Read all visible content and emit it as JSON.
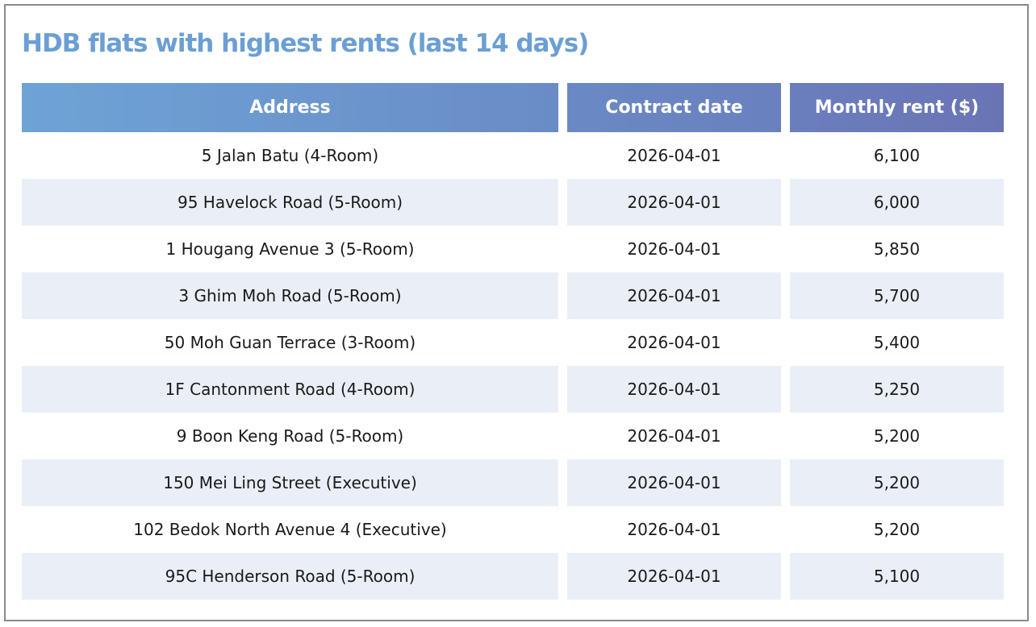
{
  "title": "HDB flats with highest rents (last 14 days)",
  "chart_data": {
    "type": "table",
    "title": "HDB flats with highest rents (last 14 days)",
    "columns": [
      "Address",
      "Contract date",
      "Monthly rent ($)"
    ],
    "rows": [
      [
        "5 Jalan Batu (4-Room)",
        "2026-04-01",
        "6,100"
      ],
      [
        "95 Havelock Road (5-Room)",
        "2026-04-01",
        "6,000"
      ],
      [
        "1 Hougang Avenue 3 (5-Room)",
        "2026-04-01",
        "5,850"
      ],
      [
        "3 Ghim Moh Road (5-Room)",
        "2026-04-01",
        "5,700"
      ],
      [
        "50 Moh Guan Terrace (3-Room)",
        "2026-04-01",
        "5,400"
      ],
      [
        "1F Cantonment Road (4-Room)",
        "2026-04-01",
        "5,250"
      ],
      [
        "9 Boon Keng Road (5-Room)",
        "2026-04-01",
        "5,200"
      ],
      [
        "150 Mei Ling Street (Executive)",
        "2026-04-01",
        "5,200"
      ],
      [
        "102 Bedok North Avenue 4 (Executive)",
        "2026-04-01",
        "5,200"
      ],
      [
        "95C Henderson Road (5-Room)",
        "2026-04-01",
        "5,100"
      ]
    ]
  },
  "colors": {
    "title": "#6b9fd4",
    "header_start": "#6ea3d6",
    "header_end": "#6a74b5",
    "alt_row": "#eaeff7"
  }
}
